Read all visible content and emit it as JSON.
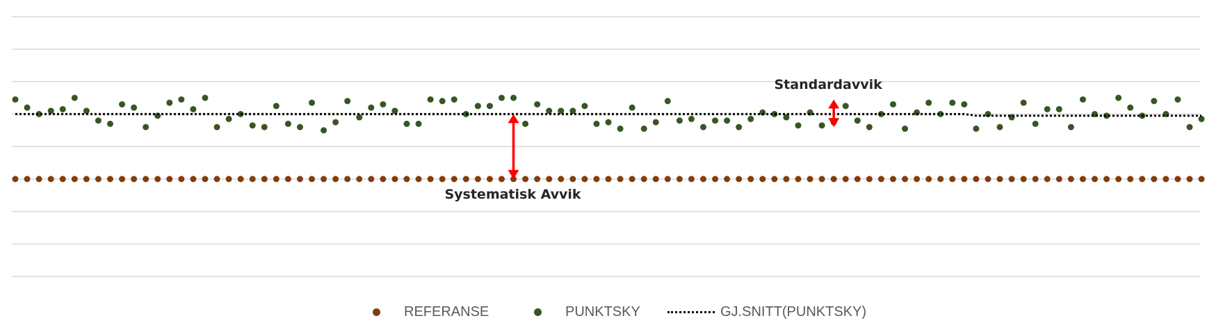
{
  "chart_data": {
    "type": "scatter",
    "title": "",
    "xlabel": "",
    "ylabel": "",
    "ylim": [
      0,
      8
    ],
    "n_points": 101,
    "grid": true,
    "legend_position": "bottom",
    "series": [
      {
        "name": "REFERANSE",
        "color": "#843C0C",
        "marker": "dot",
        "values": [
          3,
          3,
          3,
          3,
          3,
          3,
          3,
          3,
          3,
          3,
          3,
          3,
          3,
          3,
          3,
          3,
          3,
          3,
          3,
          3,
          3,
          3,
          3,
          3,
          3,
          3,
          3,
          3,
          3,
          3,
          3,
          3,
          3,
          3,
          3,
          3,
          3,
          3,
          3,
          3,
          3,
          3,
          3,
          3,
          3,
          3,
          3,
          3,
          3,
          3,
          3,
          3,
          3,
          3,
          3,
          3,
          3,
          3,
          3,
          3,
          3,
          3,
          3,
          3,
          3,
          3,
          3,
          3,
          3,
          3,
          3,
          3,
          3,
          3,
          3,
          3,
          3,
          3,
          3,
          3,
          3,
          3,
          3,
          3,
          3,
          3,
          3,
          3,
          3,
          3,
          3,
          3,
          3,
          3,
          3,
          3,
          3,
          3,
          3,
          3,
          3
        ]
      },
      {
        "name": "PUNKTSKY",
        "color": "#375623",
        "marker": "dot",
        "values": [
          5.45,
          5.2,
          5.0,
          5.1,
          5.15,
          5.5,
          5.1,
          4.8,
          4.7,
          5.3,
          5.2,
          4.6,
          4.95,
          5.35,
          5.45,
          5.15,
          5.5,
          4.6,
          4.85,
          5.0,
          4.65,
          4.6,
          5.25,
          4.7,
          4.6,
          5.35,
          4.5,
          4.75,
          5.4,
          4.9,
          5.2,
          5.3,
          5.1,
          4.7,
          4.7,
          5.45,
          5.4,
          5.45,
          5.0,
          5.25,
          5.25,
          5.5,
          5.5,
          4.7,
          5.3,
          5.1,
          5.1,
          5.1,
          5.25,
          4.7,
          4.75,
          4.55,
          5.2,
          4.55,
          4.75,
          5.4,
          4.8,
          4.85,
          4.6,
          4.8,
          4.8,
          4.6,
          4.85,
          5.05,
          5.0,
          4.9,
          4.65,
          5.05,
          4.65,
          4.75,
          5.25,
          4.8,
          4.6,
          5.0,
          5.3,
          4.55,
          5.05,
          5.35,
          5.0,
          5.35,
          5.3,
          4.55,
          5.0,
          4.6,
          4.9,
          5.35,
          4.7,
          5.15,
          5.15,
          4.6,
          5.45,
          5.0,
          4.95,
          5.5,
          5.2,
          4.95,
          5.4,
          5.0,
          5.45,
          4.6,
          4.85
        ]
      },
      {
        "name": "GJ.SNITT(PUNKTSKY)",
        "color": "#000000",
        "style": "dotted",
        "values": [
          5.0,
          5.0,
          5.0,
          5.0,
          5.0,
          5.0,
          5.0,
          5.0,
          5.0,
          5.0,
          5.0,
          5.0,
          5.0,
          5.0,
          5.0,
          5.0,
          5.0,
          5.0,
          5.0,
          5.0,
          5.0,
          5.0,
          5.0,
          5.0,
          5.0,
          5.0,
          5.0,
          5.0,
          5.0,
          5.0,
          5.0,
          5.0,
          5.0,
          5.0,
          5.0,
          5.0,
          5.0,
          5.0,
          5.0,
          5.0,
          5.0,
          5.0,
          5.0,
          5.0,
          5.0,
          5.0,
          5.0,
          5.0,
          5.0,
          5.0,
          5.0,
          5.0,
          5.0,
          5.0,
          5.0,
          5.0,
          5.0,
          5.0,
          5.0,
          5.0,
          5.0,
          5.0,
          5.0,
          5.0,
          5.0,
          5.0,
          5.0,
          5.0,
          5.0,
          5.0,
          5.0,
          5.0,
          5.0,
          5.0,
          5.0,
          5.0,
          5.0,
          5.0,
          5.0,
          5.0,
          5.0,
          4.95,
          4.95,
          4.95,
          4.95,
          4.95,
          4.95,
          4.95,
          4.95,
          4.95,
          4.95,
          4.95,
          4.95,
          4.95,
          4.95,
          4.95,
          4.95,
          4.95,
          4.95,
          4.95,
          4.95
        ]
      }
    ],
    "annotations": [
      {
        "text": "Standardavvik",
        "arrow_from": 4.6,
        "arrow_to": 5.45,
        "at_index": 69,
        "color": "#FF0000"
      },
      {
        "text": "Systematisk Avvik",
        "arrow_from": 3.0,
        "arrow_to": 5.0,
        "at_index": 42,
        "color": "#FF0000"
      }
    ]
  }
}
